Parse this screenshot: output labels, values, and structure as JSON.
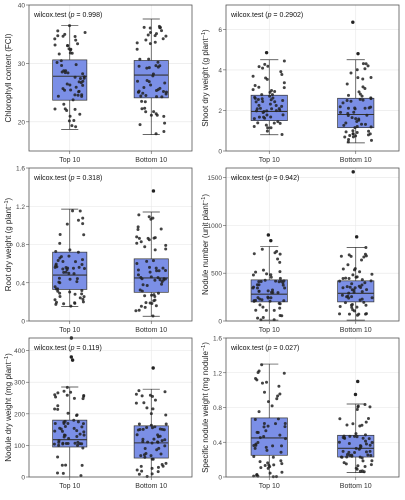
{
  "figure": {
    "background": "#ffffff",
    "panel_border": "#555555",
    "grid_color": "#e6e6e6",
    "box_fill": "#7b8fe6",
    "box_stroke": "#333333",
    "point_color": "#222222"
  },
  "chart_data": [
    {
      "type": "box",
      "title": "",
      "ylabel": "Chlorophyll content (FCI)",
      "ylabel_sup": "",
      "ylabel_end": "",
      "categories": [
        "Top 10",
        "Bottom 10"
      ],
      "ylim": [
        15,
        40
      ],
      "yticks": [
        20,
        30,
        40
      ],
      "annotation": {
        "prefix": "wilcox.test (",
        "p_label": "p",
        "p_value": " = 0.998",
        "suffix": ")"
      },
      "boxes": [
        {
          "category": "Top 10",
          "whisker_low": 18.7,
          "q1": 23.7,
          "median": 27.8,
          "q3": 30.6,
          "whisker_high": 36.5
        },
        {
          "category": "Bottom 10",
          "whisker_low": 17.8,
          "q1": 24.1,
          "median": 28.0,
          "q3": 30.5,
          "whisker_high": 37.6
        }
      ]
    },
    {
      "type": "box",
      "title": "",
      "ylabel": "Shoot dry weight (g plant",
      "ylabel_sup": "−1",
      "ylabel_end": ")",
      "categories": [
        "Top 10",
        "Bottom 10"
      ],
      "ylim": [
        0,
        7.2
      ],
      "yticks": [
        0,
        2,
        4,
        6
      ],
      "annotation": {
        "prefix": "wilcox.test (",
        "p_label": "p",
        "p_value": " = 0.2902",
        "suffix": ")"
      },
      "boxes": [
        {
          "category": "Top 10",
          "whisker_low": 0.8,
          "q1": 1.5,
          "median": 1.95,
          "q3": 2.75,
          "whisker_high": 4.5
        },
        {
          "category": "Bottom 10",
          "whisker_low": 0.4,
          "q1": 1.15,
          "median": 1.8,
          "q3": 2.6,
          "whisker_high": 4.5
        }
      ],
      "outliers": [
        {
          "category": "Top 10",
          "value": 4.85
        },
        {
          "category": "Bottom 10",
          "value": 4.8
        },
        {
          "category": "Bottom 10",
          "value": 6.35
        }
      ]
    },
    {
      "type": "box",
      "title": "",
      "ylabel": "Root dry weight (g plant",
      "ylabel_sup": "−1",
      "ylabel_end": ")",
      "categories": [
        "Top 10",
        "Bottom 10"
      ],
      "ylim": [
        0,
        1.6
      ],
      "yticks": [
        0,
        0.4,
        0.8,
        1.2,
        1.6
      ],
      "annotation": {
        "prefix": "wilcox.test (",
        "p_label": "p",
        "p_value": " = 0.318",
        "suffix": ")"
      },
      "boxes": [
        {
          "category": "Top 10",
          "whisker_low": 0.15,
          "q1": 0.33,
          "median": 0.48,
          "q3": 0.72,
          "whisker_high": 1.17
        },
        {
          "category": "Bottom 10",
          "whisker_low": 0.05,
          "q1": 0.3,
          "median": 0.45,
          "q3": 0.65,
          "whisker_high": 1.14
        }
      ],
      "outliers": [
        {
          "category": "Bottom 10",
          "value": 1.36
        }
      ]
    },
    {
      "type": "box",
      "title": "",
      "ylabel": "Nodule number (unit plant",
      "ylabel_sup": "−1",
      "ylabel_end": ")",
      "categories": [
        "Top 10",
        "Bottom 10"
      ],
      "ylim": [
        0,
        1600
      ],
      "yticks": [
        0,
        500,
        1000,
        1500
      ],
      "annotation": {
        "prefix": "wilcox.test (",
        "p_label": "p",
        "p_value": " = 0.942",
        "suffix": ")"
      },
      "boxes": [
        {
          "category": "Top 10",
          "whisker_low": 10,
          "q1": 200,
          "median": 280,
          "q3": 430,
          "whisker_high": 780
        },
        {
          "category": "Bottom 10",
          "whisker_low": 10,
          "q1": 200,
          "median": 290,
          "q3": 420,
          "whisker_high": 770
        }
      ],
      "outliers": [
        {
          "category": "Top 10",
          "value": 840
        },
        {
          "category": "Top 10",
          "value": 900
        },
        {
          "category": "Bottom 10",
          "value": 880
        },
        {
          "category": "Bottom 10",
          "value": 1560
        }
      ]
    },
    {
      "type": "box",
      "title": "",
      "ylabel": "Nodule dry weight (mg plant",
      "ylabel_sup": "−1",
      "ylabel_end": ")",
      "categories": [
        "Top 10",
        "Bottom 10"
      ],
      "ylim": [
        0,
        440
      ],
      "yticks": [
        0,
        100,
        200,
        300,
        400
      ],
      "annotation": {
        "prefix": "wilcox.test (",
        "p_label": "p",
        "p_value": " = 0.119",
        "suffix": ")"
      },
      "boxes": [
        {
          "category": "Top 10",
          "whisker_low": 0,
          "q1": 95,
          "median": 118,
          "q3": 180,
          "whisker_high": 285
        },
        {
          "category": "Bottom 10",
          "whisker_low": 0,
          "q1": 60,
          "median": 108,
          "q3": 162,
          "whisker_high": 278
        }
      ],
      "outliers": [
        {
          "category": "Top 10",
          "value": 370
        },
        {
          "category": "Top 10",
          "value": 380
        },
        {
          "category": "Top 10",
          "value": 440
        },
        {
          "category": "Bottom 10",
          "value": 345
        }
      ]
    },
    {
      "type": "box",
      "title": "",
      "ylabel": "Specific nodule weight (mg nodule",
      "ylabel_sup": "−1",
      "ylabel_end": ")",
      "categories": [
        "Top 10",
        "Bottom 10"
      ],
      "ylim": [
        0,
        1.6
      ],
      "yticks": [
        0,
        0.4,
        0.8,
        1.2,
        1.6
      ],
      "annotation": {
        "prefix": "wilcox.test (",
        "p_label": "p",
        "p_value": " = 0.027",
        "suffix": ")"
      },
      "boxes": [
        {
          "category": "Top 10",
          "whisker_low": 0,
          "q1": 0.25,
          "median": 0.45,
          "q3": 0.68,
          "whisker_high": 1.3
        },
        {
          "category": "Bottom 10",
          "whisker_low": 0.05,
          "q1": 0.23,
          "median": 0.33,
          "q3": 0.48,
          "whisker_high": 0.84
        }
      ],
      "outliers": [
        {
          "category": "Bottom 10",
          "value": 0.95
        },
        {
          "category": "Bottom 10",
          "value": 1.1
        }
      ]
    }
  ]
}
